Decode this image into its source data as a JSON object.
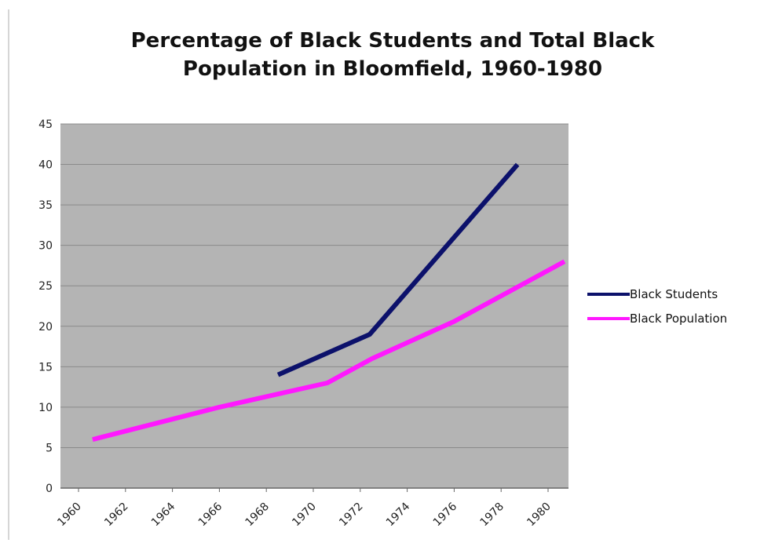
{
  "chart_data": {
    "type": "line",
    "title": [
      "Percentage of Black Students and Total Black",
      "Population in Bloomfield, 1960-1980"
    ],
    "xlabel": "",
    "ylabel": "",
    "categories": [
      "1960",
      "1962",
      "1964",
      "1966",
      "1968",
      "1970",
      "1972",
      "1974",
      "1976",
      "1978",
      "1980"
    ],
    "ylim": [
      0,
      45
    ],
    "yticks": [
      "0",
      "5",
      "10",
      "15",
      "20",
      "25",
      "30",
      "35",
      "40",
      "45"
    ],
    "grid": true,
    "legend_position": "right",
    "plot_background": "#b4b4b4",
    "series": [
      {
        "name": "Black Students",
        "color": "#0c116b",
        "points": [
          {
            "x": 1968.5,
            "y": 14
          },
          {
            "x": 1972.4,
            "y": 19
          },
          {
            "x": 1978.7,
            "y": 40
          }
        ]
      },
      {
        "name": "Black Population",
        "color": "#ff18ff",
        "points": [
          {
            "x": 1960.6,
            "y": 6
          },
          {
            "x": 1966.0,
            "y": 10
          },
          {
            "x": 1970.6,
            "y": 13
          },
          {
            "x": 1972.5,
            "y": 16
          },
          {
            "x": 1976.0,
            "y": 20.6
          },
          {
            "x": 1980.7,
            "y": 28
          }
        ]
      }
    ]
  }
}
